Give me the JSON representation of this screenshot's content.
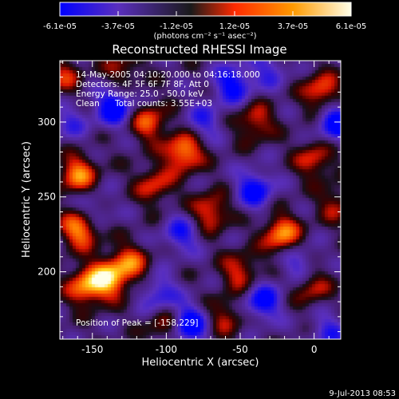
{
  "colorbar": {
    "tick_labels": [
      "-6.1e-05",
      "-3.7e-05",
      "-1.2e-05",
      "1.2e-05",
      "3.7e-05",
      "6.1e-05"
    ],
    "units_label": "(photons cm⁻² s⁻¹ asec⁻²)",
    "range": [
      -6.1e-05,
      6.1e-05
    ],
    "stops": [
      "#0000ff",
      "#5a2fbe",
      "#1a1a1a",
      "#ff2a00",
      "#ff9a00",
      "#ffffe8"
    ]
  },
  "chart_data": {
    "type": "heatmap",
    "title": "Reconstructed RHESSI Image",
    "xlabel": "Heliocentric X (arcsec)",
    "ylabel": "Heliocentric Y (arcsec)",
    "xlim": [
      -172,
      18
    ],
    "ylim": [
      155,
      341
    ],
    "xticks": [
      -150,
      -100,
      -50,
      0
    ],
    "xtick_labels": [
      "-150",
      "-100",
      "-50",
      "0"
    ],
    "yticks": [
      200,
      250,
      300
    ],
    "ytick_labels": [
      "200",
      "250",
      "300"
    ],
    "info_lines": [
      "14-May-2005 04:10:20.000 to 04:16:18.000",
      "Detectors: 4F 5F 6F 7F 8F, Att 0",
      "Energy Range: 25.0 - 50.0 keV"
    ],
    "clean_label": "Clean",
    "counts_label": "Total counts: 3.55E+03",
    "peak_label": "Position of Peak = [-158,229]",
    "peak_position": [
      -158,
      229
    ],
    "blobs": [
      {
        "x": -158,
        "y": 229,
        "v": 1.0
      },
      {
        "x": -160,
        "y": 265,
        "v": 0.85
      },
      {
        "x": -140,
        "y": 195,
        "v": 0.95
      },
      {
        "x": -155,
        "y": 190,
        "v": 0.8
      },
      {
        "x": -125,
        "y": 205,
        "v": 0.75
      },
      {
        "x": -88,
        "y": 280,
        "v": 0.95
      },
      {
        "x": -112,
        "y": 300,
        "v": 0.7
      },
      {
        "x": -108,
        "y": 258,
        "v": 0.6
      },
      {
        "x": -70,
        "y": 240,
        "v": 0.7
      },
      {
        "x": -40,
        "y": 300,
        "v": 0.6
      },
      {
        "x": 5,
        "y": 320,
        "v": 0.75
      },
      {
        "x": 0,
        "y": 275,
        "v": 0.6
      },
      {
        "x": -22,
        "y": 225,
        "v": 0.9
      },
      {
        "x": -2,
        "y": 190,
        "v": 0.55
      },
      {
        "x": -50,
        "y": 200,
        "v": 0.6
      },
      {
        "x": -100,
        "y": 165,
        "v": 0.55
      },
      {
        "x": -60,
        "y": 170,
        "v": 0.5
      },
      {
        "x": -170,
        "y": 330,
        "v": 0.5
      },
      {
        "x": -130,
        "y": 335,
        "v": 0.45
      },
      {
        "x": 15,
        "y": 245,
        "v": 0.45
      },
      {
        "x": -135,
        "y": 310,
        "v": -0.9
      },
      {
        "x": -55,
        "y": 325,
        "v": -0.8
      },
      {
        "x": -90,
        "y": 225,
        "v": -0.6
      },
      {
        "x": -40,
        "y": 255,
        "v": -0.8
      },
      {
        "x": 15,
        "y": 300,
        "v": -0.9
      },
      {
        "x": -85,
        "y": 165,
        "v": -1.0
      },
      {
        "x": -105,
        "y": 185,
        "v": -0.6
      },
      {
        "x": -35,
        "y": 180,
        "v": -0.8
      },
      {
        "x": -10,
        "y": 205,
        "v": -0.5
      },
      {
        "x": -150,
        "y": 240,
        "v": -0.45
      },
      {
        "x": -75,
        "y": 300,
        "v": -0.5
      },
      {
        "x": -165,
        "y": 300,
        "v": -0.4
      },
      {
        "x": 10,
        "y": 160,
        "v": -0.5
      },
      {
        "x": -30,
        "y": 335,
        "v": -0.45
      }
    ]
  },
  "footer": {
    "date": "9-Jul-2013 08:53"
  }
}
